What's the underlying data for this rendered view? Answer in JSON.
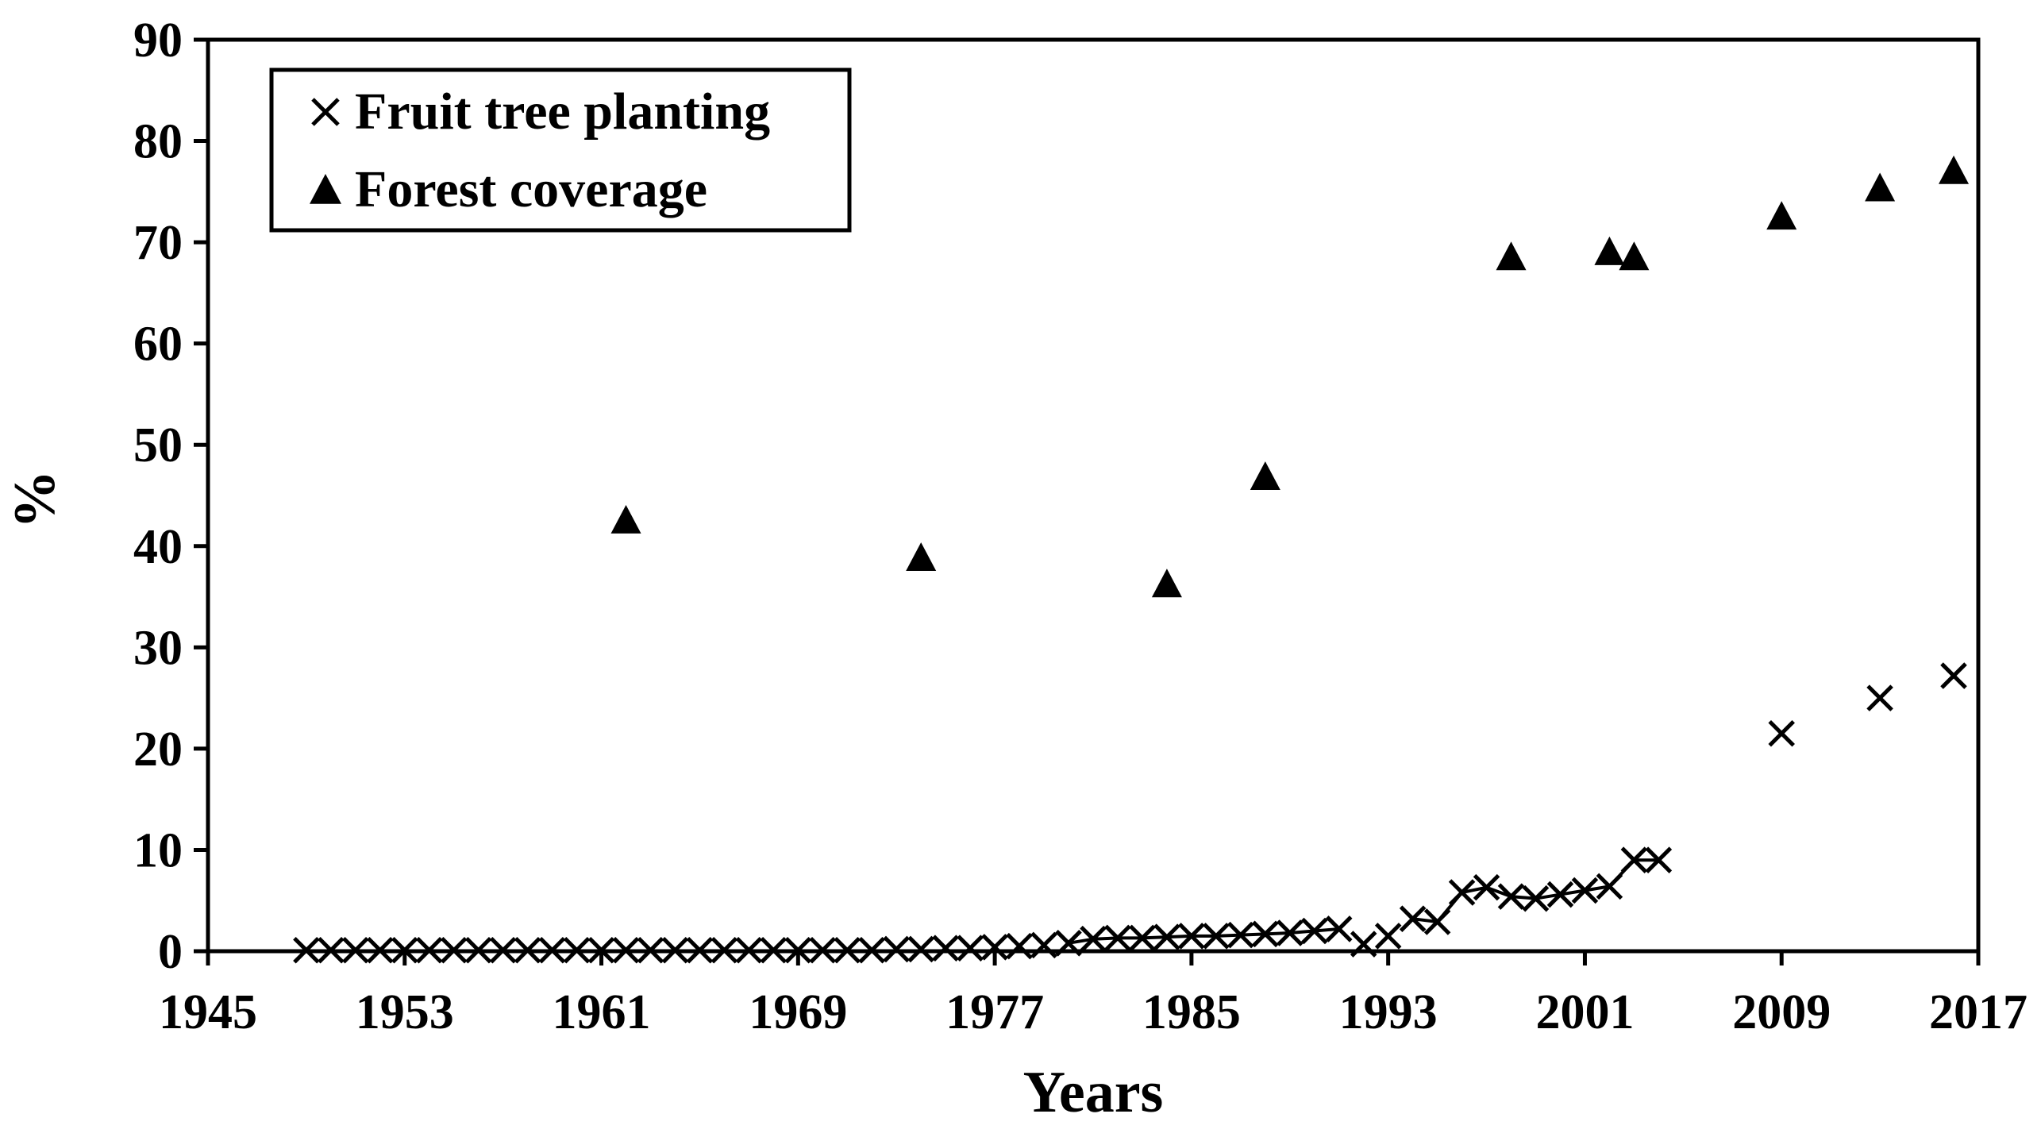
{
  "chart_data": {
    "type": "scatter",
    "title": "",
    "xlabel": "Years",
    "ylabel": "%",
    "xlim": [
      1945,
      2017
    ],
    "ylim": [
      0,
      90
    ],
    "xticks": [
      "1945",
      "1953",
      "1961",
      "1969",
      "1977",
      "1985",
      "1993",
      "2001",
      "2009",
      "2017"
    ],
    "yticks": [
      "0",
      "10",
      "20",
      "30",
      "40",
      "50",
      "60",
      "70",
      "80",
      "90"
    ],
    "legend_position": "top-left",
    "series": [
      {
        "name": "Fruit tree planting",
        "marker": "x",
        "line_segments": [
          [
            1980,
            1991
          ],
          [
            1994,
            2004
          ]
        ],
        "points": [
          [
            1949,
            0.1
          ],
          [
            1950,
            0.1
          ],
          [
            1951,
            0.1
          ],
          [
            1952,
            0.1
          ],
          [
            1953,
            0.1
          ],
          [
            1954,
            0.1
          ],
          [
            1955,
            0.1
          ],
          [
            1956,
            0.1
          ],
          [
            1957,
            0.1
          ],
          [
            1958,
            0.1
          ],
          [
            1959,
            0.1
          ],
          [
            1960,
            0.1
          ],
          [
            1961,
            0.1
          ],
          [
            1962,
            0.1
          ],
          [
            1963,
            0.1
          ],
          [
            1964,
            0.1
          ],
          [
            1965,
            0.1
          ],
          [
            1966,
            0.1
          ],
          [
            1967,
            0.1
          ],
          [
            1968,
            0.1
          ],
          [
            1969,
            0.1
          ],
          [
            1970,
            0.1
          ],
          [
            1971,
            0.1
          ],
          [
            1972,
            0.1
          ],
          [
            1973,
            0.2
          ],
          [
            1974,
            0.2
          ],
          [
            1975,
            0.3
          ],
          [
            1976,
            0.3
          ],
          [
            1977,
            0.4
          ],
          [
            1978,
            0.5
          ],
          [
            1979,
            0.6
          ],
          [
            1980,
            0.8
          ],
          [
            1981,
            1.2
          ],
          [
            1982,
            1.3
          ],
          [
            1983,
            1.3
          ],
          [
            1984,
            1.4
          ],
          [
            1985,
            1.5
          ],
          [
            1986,
            1.5
          ],
          [
            1987,
            1.6
          ],
          [
            1988,
            1.7
          ],
          [
            1989,
            1.8
          ],
          [
            1990,
            2.0
          ],
          [
            1991,
            2.2
          ],
          [
            1992,
            0.7
          ],
          [
            1993,
            1.5
          ],
          [
            1994,
            3.2
          ],
          [
            1995,
            2.9
          ],
          [
            1996,
            5.8
          ],
          [
            1997,
            6.3
          ],
          [
            1998,
            5.4
          ],
          [
            1999,
            5.2
          ],
          [
            2000,
            5.6
          ],
          [
            2001,
            6.0
          ],
          [
            2002,
            6.4
          ],
          [
            2003,
            9.0
          ],
          [
            2004,
            9.0
          ],
          [
            2009,
            21.5
          ],
          [
            2013,
            25.0
          ],
          [
            2016,
            27.2
          ]
        ]
      },
      {
        "name": "Forest coverage",
        "marker": "triangle",
        "points": [
          [
            1962,
            42.5
          ],
          [
            1974,
            38.8
          ],
          [
            1984,
            36.2
          ],
          [
            1988,
            46.8
          ],
          [
            1998,
            68.5
          ],
          [
            2002,
            69.0
          ],
          [
            2003,
            68.5
          ],
          [
            2009,
            72.5
          ],
          [
            2013,
            75.3
          ],
          [
            2016,
            77.0
          ]
        ]
      }
    ]
  }
}
